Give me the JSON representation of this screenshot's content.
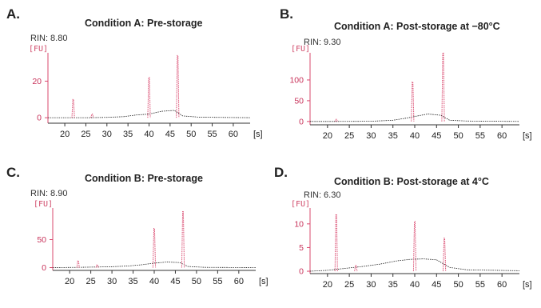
{
  "colors": {
    "trace": "#d9486e",
    "baseline": "#1a1a1a",
    "axis_y": "#d9486e",
    "axis_x": "#333333"
  },
  "chart_data": [
    {
      "type": "line",
      "letter": "A.",
      "title": "Condition A: Pre-storage",
      "rin": "RIN: 8.80",
      "ylabel": "[FU]",
      "xunit": "[s]",
      "x_ticks": [
        20,
        25,
        30,
        35,
        40,
        45,
        50,
        55,
        60
      ],
      "y_ticks": [
        0,
        20
      ],
      "xlim": [
        16,
        64
      ],
      "ylim": [
        -3,
        32
      ],
      "peaks": [
        {
          "x": 22.0,
          "y": 10
        },
        {
          "x": 26.5,
          "y": 2
        },
        {
          "x": 40.0,
          "y": 22
        },
        {
          "x": 46.8,
          "y": 34
        }
      ],
      "baseline": [
        [
          16,
          0
        ],
        [
          22,
          0
        ],
        [
          26,
          0
        ],
        [
          30,
          0.2
        ],
        [
          34,
          0.6
        ],
        [
          37,
          1.5
        ],
        [
          40,
          2
        ],
        [
          43,
          3.5
        ],
        [
          46,
          4
        ],
        [
          48,
          1
        ],
        [
          52,
          0.3
        ],
        [
          64,
          0
        ]
      ]
    },
    {
      "type": "line",
      "letter": "B.",
      "title": "Condition A: Post-storage at −80°C",
      "rin": "RIN: 9.30",
      "ylabel": "[FU]",
      "xunit": "[s]",
      "x_ticks": [
        20,
        25,
        30,
        35,
        40,
        45,
        50,
        55,
        60
      ],
      "y_ticks": [
        0,
        50,
        100
      ],
      "xlim": [
        16,
        64
      ],
      "ylim": [
        -8,
        150
      ],
      "peaks": [
        {
          "x": 22.0,
          "y": 5
        },
        {
          "x": 39.5,
          "y": 95
        },
        {
          "x": 46.5,
          "y": 165
        }
      ],
      "baseline": [
        [
          16,
          0
        ],
        [
          22,
          0
        ],
        [
          30,
          0.5
        ],
        [
          35,
          3
        ],
        [
          38,
          8
        ],
        [
          40,
          12
        ],
        [
          43,
          18
        ],
        [
          46,
          15
        ],
        [
          48,
          3
        ],
        [
          52,
          1
        ],
        [
          64,
          0
        ]
      ]
    },
    {
      "type": "line",
      "letter": "C.",
      "title": "Condition B: Pre-storage",
      "rin": "RIN: 8.90",
      "ylabel": "[FU]",
      "xunit": "[s]",
      "x_ticks": [
        20,
        25,
        30,
        35,
        40,
        45,
        50,
        55,
        60
      ],
      "y_ticks": [
        0,
        50
      ],
      "xlim": [
        16,
        64
      ],
      "ylim": [
        -5,
        95
      ],
      "peaks": [
        {
          "x": 22.0,
          "y": 12
        },
        {
          "x": 26.5,
          "y": 5
        },
        {
          "x": 40.0,
          "y": 70
        },
        {
          "x": 46.8,
          "y": 100
        }
      ],
      "baseline": [
        [
          16,
          0
        ],
        [
          22,
          0.5
        ],
        [
          26,
          1
        ],
        [
          30,
          1.5
        ],
        [
          34,
          3
        ],
        [
          37,
          5
        ],
        [
          40,
          8
        ],
        [
          43,
          10
        ],
        [
          46,
          9
        ],
        [
          48,
          2
        ],
        [
          52,
          0.5
        ],
        [
          64,
          0
        ]
      ]
    },
    {
      "type": "line",
      "letter": "D.",
      "title": "Condition B: Post-storage at 4°C",
      "rin": "RIN: 6.30",
      "ylabel": "[FU]",
      "xunit": "[s]",
      "x_ticks": [
        20,
        25,
        30,
        35,
        40,
        45,
        50,
        55,
        60
      ],
      "y_ticks": [
        0,
        5,
        10
      ],
      "xlim": [
        16,
        64
      ],
      "ylim": [
        -0.5,
        12
      ],
      "peaks": [
        {
          "x": 22.0,
          "y": 12
        },
        {
          "x": 26.5,
          "y": 1.2
        },
        {
          "x": 40.0,
          "y": 10.5
        },
        {
          "x": 46.8,
          "y": 7
        }
      ],
      "baseline": [
        [
          16,
          0
        ],
        [
          20,
          0.2
        ],
        [
          24,
          0.6
        ],
        [
          28,
          1.0
        ],
        [
          32,
          1.5
        ],
        [
          36,
          2.2
        ],
        [
          39,
          2.5
        ],
        [
          42,
          2.6
        ],
        [
          45,
          2.4
        ],
        [
          48,
          0.8
        ],
        [
          52,
          0.3
        ],
        [
          64,
          0.1
        ]
      ]
    }
  ]
}
